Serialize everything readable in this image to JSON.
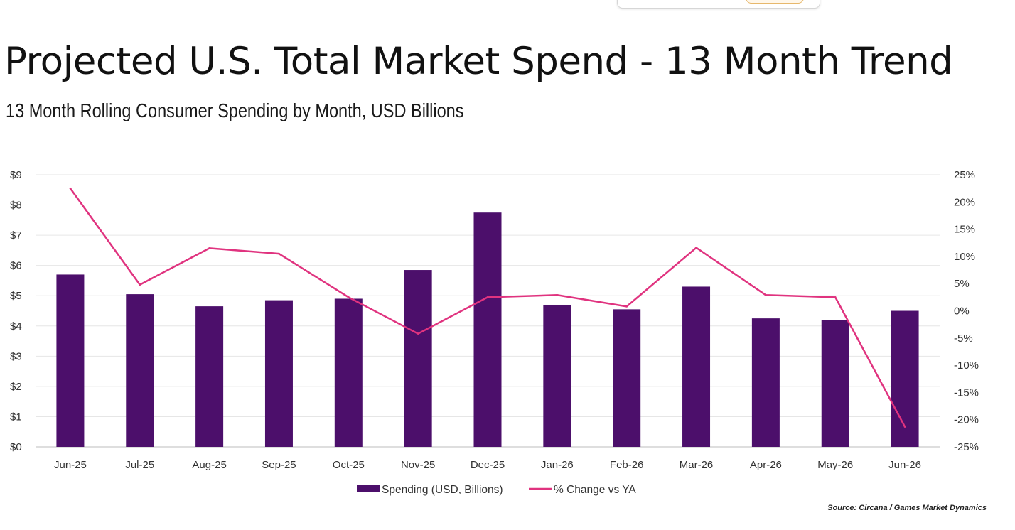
{
  "header": {
    "title": "Projected U.S. Total Market Spend - 13 Month Trend",
    "subtitle": "13 Month Rolling Consumer Spending by Month, USD Billions"
  },
  "source": "Source: Circana / Games Market Dynamics",
  "colors": {
    "bar": "#4c0f6b",
    "line": "#e0337f",
    "grid": "#e6e6e6",
    "axis": "#bdbdbd"
  },
  "chart_data": {
    "type": "bar",
    "title": "Projected U.S. Total Market Spend - 13 Month Trend",
    "subtitle": "13 Month Rolling Consumer Spending by Month, USD Billions",
    "categories": [
      "Jun-25",
      "Jul-25",
      "Aug-25",
      "Sep-25",
      "Oct-25",
      "Nov-25",
      "Dec-25",
      "Jan-26",
      "Feb-26",
      "Mar-26",
      "Apr-26",
      "May-26",
      "Jun-26"
    ],
    "series": [
      {
        "name": "Spending (USD, Billions)",
        "type": "bar",
        "axis": "left",
        "values": [
          5.7,
          5.05,
          4.65,
          4.85,
          4.9,
          5.85,
          7.75,
          4.7,
          4.55,
          5.3,
          4.25,
          4.2,
          4.5
        ]
      },
      {
        "name": "% Change vs YA",
        "type": "line",
        "axis": "right",
        "values": [
          22.5,
          4.8,
          11.5,
          10.5,
          2.5,
          -4.2,
          2.5,
          2.9,
          0.8,
          11.6,
          2.9,
          2.5,
          -21.3
        ]
      }
    ],
    "y_left": {
      "ylim": [
        0,
        9
      ],
      "ticks": [
        "$0",
        "$1",
        "$2",
        "$3",
        "$4",
        "$5",
        "$6",
        "$7",
        "$8",
        "$9"
      ]
    },
    "y_right": {
      "ylim": [
        -25,
        25
      ],
      "ticks": [
        "-25%",
        "-20%",
        "-15%",
        "-10%",
        "-5%",
        "0%",
        "5%",
        "10%",
        "15%",
        "20%",
        "25%"
      ]
    },
    "grid": true,
    "legend_position": "bottom-center"
  }
}
